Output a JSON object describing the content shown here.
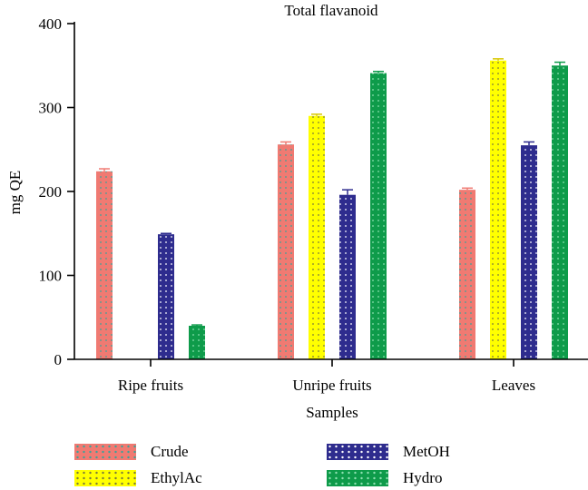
{
  "chart_data": {
    "type": "bar",
    "title": "Total flavanoid",
    "xlabel": "Samples",
    "ylabel": "mg QE",
    "categories": [
      "Ripe fruits",
      "Unripe fruits",
      "Leaves"
    ],
    "ylim": [
      0,
      400
    ],
    "yticks": [
      "0",
      "100",
      "200",
      "300",
      "400"
    ],
    "grid": false,
    "legend_position": "bottom",
    "series": [
      {
        "name": "Crude",
        "color": "#f07a72",
        "dot_color": "#3aa39a",
        "values": [
          224,
          256,
          202
        ],
        "errors": [
          3,
          3,
          2
        ]
      },
      {
        "name": "EthylAc",
        "color": "#ffff00",
        "dot_color": "#7a7a3a",
        "values": [
          0,
          290,
          356
        ],
        "errors": [
          0,
          2,
          2
        ]
      },
      {
        "name": "MetOH",
        "color": "#2e2c8e",
        "dot_color": "#ffffff",
        "values": [
          149,
          196,
          255
        ],
        "errors": [
          1,
          6,
          4
        ]
      },
      {
        "name": "Hydro",
        "color": "#0e9b4a",
        "dot_color": "#8de0b0",
        "values": [
          40,
          341,
          350
        ],
        "errors": [
          1,
          2,
          4
        ]
      }
    ]
  }
}
